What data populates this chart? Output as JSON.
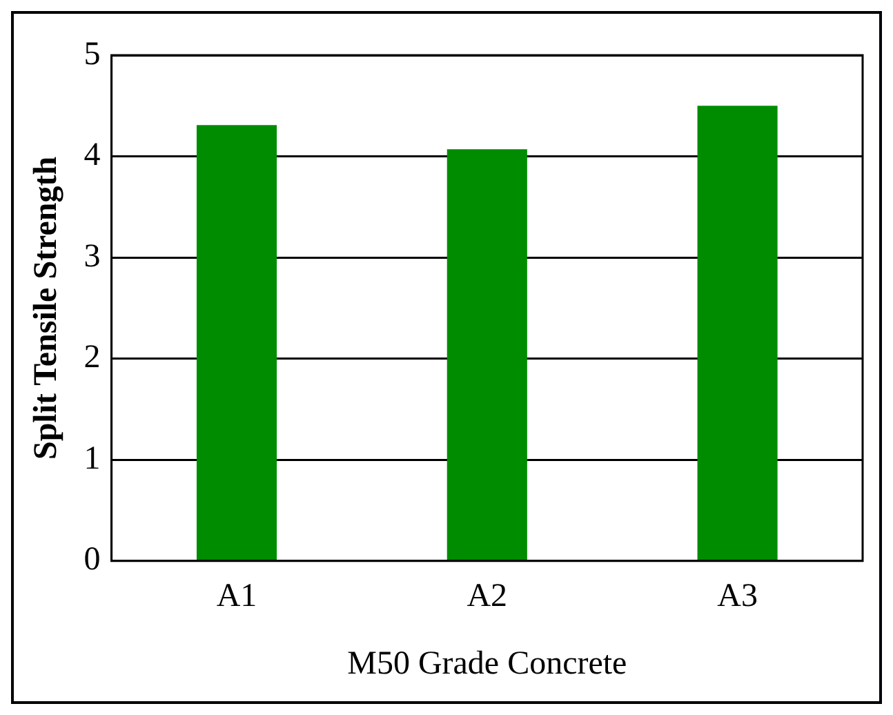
{
  "chart_data": {
    "type": "bar",
    "xlabel": "M50 Grade Concrete",
    "ylabel": "Split Tensile Strength",
    "categories": [
      "A1",
      "A2",
      "A3"
    ],
    "values": [
      4.31,
      4.07,
      4.5
    ],
    "color": "#008c00",
    "ylim": [
      0,
      5
    ],
    "yticks": [
      0,
      1,
      2,
      3,
      4,
      5
    ],
    "grid": "y",
    "legend": false
  }
}
